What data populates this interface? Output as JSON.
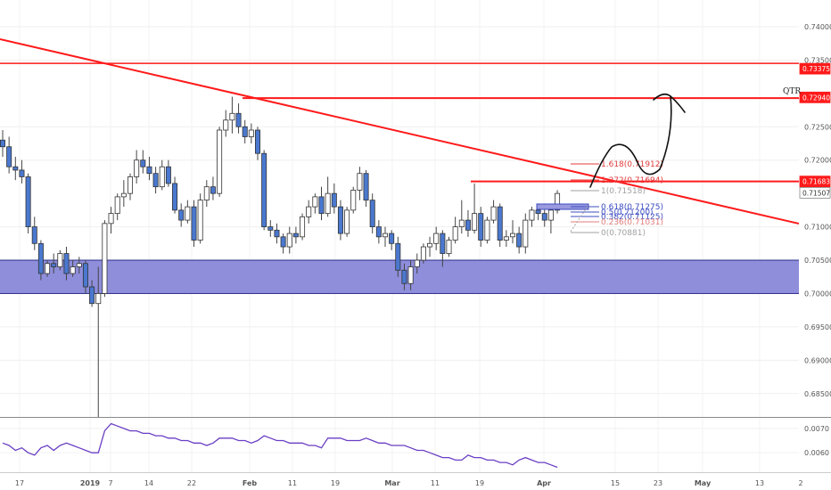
{
  "chart_data": {
    "type": "candlestick",
    "price_axis": {
      "ticks": [
        "0.74000",
        "0.73500",
        "0.72500",
        "0.72000",
        "0.71000",
        "0.70500",
        "0.70000",
        "0.69500",
        "0.69000",
        "0.68500"
      ],
      "range": [
        0.6815,
        0.744
      ]
    },
    "time_axis": {
      "ticks": [
        "17",
        "2019",
        "7",
        "14",
        "22",
        "Feb",
        "11",
        "19",
        "Mar",
        "11",
        "19",
        "Apr",
        "15",
        "23",
        "May",
        "13",
        "2"
      ]
    },
    "price_tags": [
      {
        "value": "0.73375",
        "color": "#ff1a1a"
      },
      {
        "value": "0.72940",
        "color": "#ff1a1a"
      },
      {
        "value": "0.71683",
        "color": "#ff1a1a"
      },
      {
        "value": "0.71507",
        "color": "#ffffff"
      }
    ],
    "annotations": {
      "qtr_label": "QTR"
    },
    "fib_levels": [
      {
        "label": "1.618(0.71912)",
        "color": "#e33b3b"
      },
      {
        "label": "1.272(0.71694)",
        "color": "#e33b3b"
      },
      {
        "label": "1(0.71518)",
        "color": "#a0a0a0"
      },
      {
        "label": "0.618(0.71275)",
        "color": "#3b4cc0"
      },
      {
        "label": "0.5(0.71200)",
        "color": "#3b4cc0"
      },
      {
        "label": "0.382(0.71125)",
        "color": "#3b4cc0"
      },
      {
        "label": "0.236(0.71031)",
        "color": "#e37b7b"
      },
      {
        "label": "0(0.70881)",
        "color": "#a0a0a0"
      }
    ],
    "candles": [
      [
        0.723,
        0.7245,
        0.7205,
        0.722
      ],
      [
        0.722,
        0.7235,
        0.718,
        0.719
      ],
      [
        0.719,
        0.7205,
        0.717,
        0.7185
      ],
      [
        0.7185,
        0.72,
        0.7165,
        0.7175
      ],
      [
        0.7175,
        0.718,
        0.709,
        0.71
      ],
      [
        0.71,
        0.7115,
        0.7065,
        0.7075
      ],
      [
        0.7075,
        0.708,
        0.702,
        0.703
      ],
      [
        0.703,
        0.705,
        0.7025,
        0.7045
      ],
      [
        0.7045,
        0.706,
        0.703,
        0.704
      ],
      [
        0.704,
        0.7065,
        0.7035,
        0.706
      ],
      [
        0.706,
        0.707,
        0.702,
        0.703
      ],
      [
        0.703,
        0.705,
        0.7025,
        0.704
      ],
      [
        0.704,
        0.7055,
        0.703,
        0.7045
      ],
      [
        0.7045,
        0.705,
        0.7,
        0.701
      ],
      [
        0.701,
        0.702,
        0.698,
        0.6985
      ],
      [
        0.6985,
        0.704,
        0.6815,
        0.7
      ],
      [
        0.7,
        0.711,
        0.6995,
        0.7105
      ],
      [
        0.7105,
        0.713,
        0.709,
        0.712
      ],
      [
        0.712,
        0.715,
        0.711,
        0.7145
      ],
      [
        0.7145,
        0.717,
        0.713,
        0.715
      ],
      [
        0.715,
        0.718,
        0.714,
        0.7175
      ],
      [
        0.7175,
        0.7215,
        0.7165,
        0.72
      ],
      [
        0.72,
        0.7215,
        0.718,
        0.719
      ],
      [
        0.719,
        0.7205,
        0.717,
        0.718
      ],
      [
        0.718,
        0.719,
        0.715,
        0.716
      ],
      [
        0.716,
        0.72,
        0.7155,
        0.719
      ],
      [
        0.719,
        0.72,
        0.716,
        0.7165
      ],
      [
        0.7165,
        0.7175,
        0.712,
        0.7125
      ],
      [
        0.7125,
        0.7135,
        0.71,
        0.711
      ],
      [
        0.711,
        0.714,
        0.7105,
        0.713
      ],
      [
        0.713,
        0.714,
        0.707,
        0.708
      ],
      [
        0.708,
        0.715,
        0.7075,
        0.714
      ],
      [
        0.714,
        0.717,
        0.713,
        0.716
      ],
      [
        0.716,
        0.7175,
        0.714,
        0.715
      ],
      [
        0.715,
        0.725,
        0.7145,
        0.7245
      ],
      [
        0.7245,
        0.7275,
        0.7235,
        0.726
      ],
      [
        0.726,
        0.7295,
        0.724,
        0.727
      ],
      [
        0.727,
        0.7285,
        0.724,
        0.725
      ],
      [
        0.725,
        0.726,
        0.7225,
        0.7235
      ],
      [
        0.7235,
        0.7255,
        0.7225,
        0.7245
      ],
      [
        0.7245,
        0.725,
        0.72,
        0.721
      ],
      [
        0.721,
        0.7215,
        0.7095,
        0.71
      ],
      [
        0.71,
        0.711,
        0.7085,
        0.7095
      ],
      [
        0.7095,
        0.7105,
        0.7075,
        0.7085
      ],
      [
        0.7085,
        0.709,
        0.706,
        0.707
      ],
      [
        0.707,
        0.71,
        0.706,
        0.709
      ],
      [
        0.709,
        0.71,
        0.7075,
        0.7085
      ],
      [
        0.7085,
        0.712,
        0.708,
        0.7115
      ],
      [
        0.7115,
        0.714,
        0.7105,
        0.713
      ],
      [
        0.713,
        0.715,
        0.712,
        0.7145
      ],
      [
        0.7145,
        0.716,
        0.711,
        0.712
      ],
      [
        0.712,
        0.7175,
        0.7115,
        0.715
      ],
      [
        0.715,
        0.7165,
        0.712,
        0.713
      ],
      [
        0.713,
        0.714,
        0.708,
        0.709
      ],
      [
        0.709,
        0.713,
        0.7085,
        0.7125
      ],
      [
        0.7125,
        0.716,
        0.712,
        0.7155
      ],
      [
        0.7155,
        0.719,
        0.714,
        0.718
      ],
      [
        0.718,
        0.7185,
        0.713,
        0.714
      ],
      [
        0.714,
        0.715,
        0.709,
        0.71
      ],
      [
        0.71,
        0.711,
        0.7075,
        0.7085
      ],
      [
        0.7085,
        0.71,
        0.707,
        0.709
      ],
      [
        0.709,
        0.7095,
        0.7065,
        0.7075
      ],
      [
        0.7075,
        0.7085,
        0.7025,
        0.7035
      ],
      [
        0.7035,
        0.7045,
        0.7005,
        0.7015
      ],
      [
        0.7015,
        0.705,
        0.7005,
        0.704
      ],
      [
        0.704,
        0.706,
        0.703,
        0.705
      ],
      [
        0.705,
        0.7075,
        0.7045,
        0.707
      ],
      [
        0.707,
        0.7085,
        0.7055,
        0.7075
      ],
      [
        0.7075,
        0.71,
        0.7065,
        0.709
      ],
      [
        0.709,
        0.7095,
        0.704,
        0.706
      ],
      [
        0.706,
        0.7085,
        0.7055,
        0.708
      ],
      [
        0.708,
        0.7115,
        0.7075,
        0.71
      ],
      [
        0.71,
        0.714,
        0.709,
        0.711
      ],
      [
        0.711,
        0.7125,
        0.7085,
        0.7095
      ],
      [
        0.7095,
        0.7165,
        0.709,
        0.712
      ],
      [
        0.712,
        0.713,
        0.707,
        0.708
      ],
      [
        0.708,
        0.7115,
        0.7075,
        0.711
      ],
      [
        0.711,
        0.714,
        0.7105,
        0.713
      ],
      [
        0.713,
        0.7135,
        0.707,
        0.708
      ],
      [
        0.708,
        0.7095,
        0.707,
        0.7085
      ],
      [
        0.7085,
        0.711,
        0.7075,
        0.709
      ],
      [
        0.709,
        0.71,
        0.706,
        0.707
      ],
      [
        0.707,
        0.712,
        0.706,
        0.711
      ],
      [
        0.711,
        0.713,
        0.71,
        0.7125
      ],
      [
        0.7125,
        0.7135,
        0.711,
        0.712
      ],
      [
        0.712,
        0.7135,
        0.71,
        0.711
      ],
      [
        0.711,
        0.713,
        0.709,
        0.7125
      ],
      [
        0.7125,
        0.7155,
        0.712,
        0.715
      ]
    ],
    "indicator": {
      "ticks": [
        "0.0070",
        "0.0060"
      ],
      "range": [
        0.0052,
        0.0074
      ],
      "values": [
        0.0064,
        0.0063,
        0.0061,
        0.0062,
        0.006,
        0.0059,
        0.0062,
        0.0063,
        0.0061,
        0.0063,
        0.0064,
        0.0063,
        0.0062,
        0.0061,
        0.006,
        0.006,
        0.0069,
        0.0072,
        0.0071,
        0.007,
        0.0069,
        0.0069,
        0.0068,
        0.0068,
        0.0067,
        0.0067,
        0.0066,
        0.0066,
        0.0065,
        0.0065,
        0.0064,
        0.0064,
        0.0063,
        0.0064,
        0.0066,
        0.0066,
        0.0066,
        0.0065,
        0.0065,
        0.0064,
        0.0065,
        0.0067,
        0.0066,
        0.0065,
        0.0065,
        0.0064,
        0.0064,
        0.0064,
        0.0063,
        0.0063,
        0.0062,
        0.0066,
        0.0066,
        0.0066,
        0.0065,
        0.0065,
        0.0065,
        0.0066,
        0.0065,
        0.0064,
        0.0064,
        0.0063,
        0.0063,
        0.0063,
        0.0062,
        0.0061,
        0.0061,
        0.006,
        0.0059,
        0.0058,
        0.0058,
        0.0057,
        0.0057,
        0.0059,
        0.0058,
        0.0058,
        0.0057,
        0.0057,
        0.0056,
        0.0056,
        0.0055,
        0.0057,
        0.0058,
        0.0057,
        0.0056,
        0.0056,
        0.0055,
        0.0054
      ]
    },
    "grid": true
  }
}
